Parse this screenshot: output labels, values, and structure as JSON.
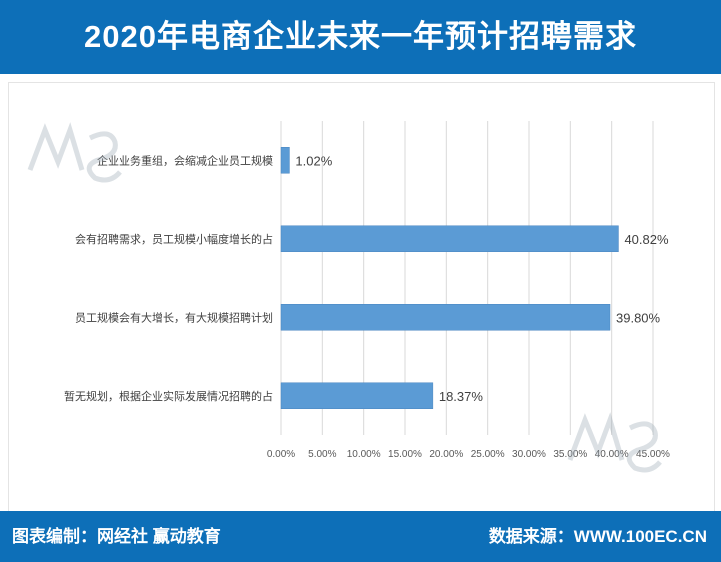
{
  "header": {
    "title": "2020年电商企业未来一年预计招聘需求"
  },
  "footer": {
    "left_label": "图表编制：网经社  赢动教育",
    "right_label": "数据来源：WWW.100EC.CN"
  },
  "colors": {
    "brand": "#0d6fb8",
    "bar": "#5b9bd5",
    "grid": "#d9d9d9"
  },
  "chart_data": {
    "type": "bar",
    "orientation": "horizontal",
    "categories": [
      "企业业务重组，会缩减企业员工规模",
      "会有招聘需求，员工规模小幅度增长的占",
      "员工规模会有大增长，有大规模招聘计划",
      "暂无规划，根据企业实际发展情况招聘的占"
    ],
    "values": [
      1.02,
      40.82,
      39.8,
      18.37
    ],
    "data_labels": [
      "1.02%",
      "40.82%",
      "39.80%",
      "18.37%"
    ],
    "xlim": [
      0,
      45
    ],
    "xticks": [
      0,
      5,
      10,
      15,
      20,
      25,
      30,
      35,
      40,
      45
    ],
    "xtick_labels": [
      "0.00%",
      "5.00%",
      "10.00%",
      "15.00%",
      "20.00%",
      "25.00%",
      "30.00%",
      "35.00%",
      "40.00%",
      "45.00%"
    ],
    "grid": true
  }
}
